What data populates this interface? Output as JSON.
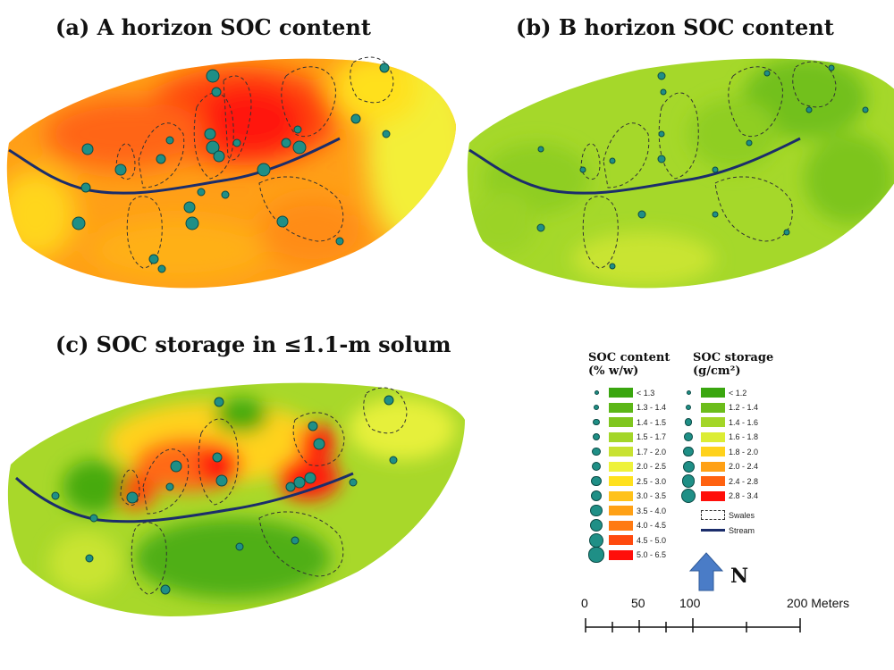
{
  "titles": {
    "a": "(a)  A horizon SOC content",
    "b": "(b) B horizon SOC content",
    "c": "(c) SOC storage in ≤1.1-m solum"
  },
  "legend": {
    "content_header_line1": "SOC content",
    "content_header_line2": "(% w/w)",
    "storage_header_line1": "SOC storage",
    "storage_header_line2": "(g/cm²)",
    "content_classes": [
      {
        "label": "< 1.3",
        "color": "#3aa60f"
      },
      {
        "label": "1.3 - 1.4",
        "color": "#5cb617"
      },
      {
        "label": "1.4 - 1.5",
        "color": "#80c61f"
      },
      {
        "label": "1.5 - 1.7",
        "color": "#a3d628"
      },
      {
        "label": "1.7 - 2.0",
        "color": "#c8e232"
      },
      {
        "label": "2.0 - 2.5",
        "color": "#eef23a"
      },
      {
        "label": "2.5 - 3.0",
        "color": "#ffe11e"
      },
      {
        "label": "3.0 - 3.5",
        "color": "#ffc21a"
      },
      {
        "label": "3.5 - 4.0",
        "color": "#ffa116"
      },
      {
        "label": "4.0 - 4.5",
        "color": "#ff7a12"
      },
      {
        "label": "4.5 - 5.0",
        "color": "#ff4a0e"
      },
      {
        "label": "5.0 - 6.5",
        "color": "#ff0f0a"
      }
    ],
    "storage_classes": [
      {
        "label": "< 1.2",
        "color": "#3aa60f"
      },
      {
        "label": "1.2 - 1.4",
        "color": "#6cbd1b"
      },
      {
        "label": "1.4 - 1.6",
        "color": "#a3d628"
      },
      {
        "label": "1.6 - 1.8",
        "color": "#dced34"
      },
      {
        "label": "1.8 - 2.0",
        "color": "#ffd21c"
      },
      {
        "label": "2.0 - 2.4",
        "color": "#ffa116"
      },
      {
        "label": "2.4 - 2.8",
        "color": "#ff6210"
      },
      {
        "label": "2.8 - 3.4",
        "color": "#ff0f0a"
      }
    ],
    "swales_label": "Swales",
    "stream_label": "Stream",
    "point_color": "#1f8f86",
    "stream_color": "#1b2d6b"
  },
  "north": {
    "label": "N",
    "arrow_color": "#4a7cc7"
  },
  "scale_bar": {
    "ticks": [
      "0",
      "50",
      "100",
      "200 Meters"
    ]
  }
}
